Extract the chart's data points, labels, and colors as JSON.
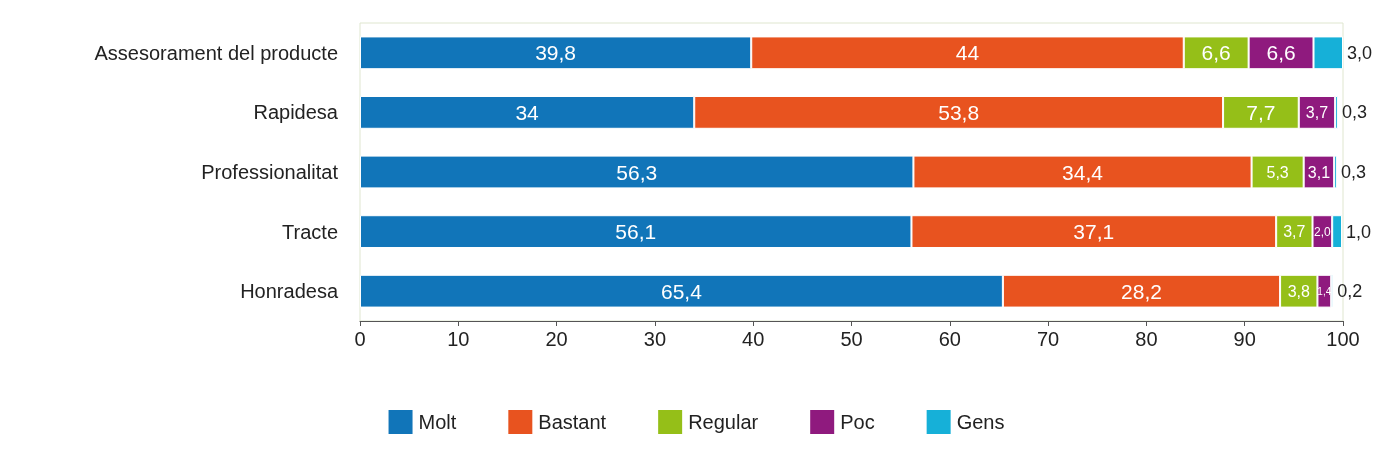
{
  "chart_data": {
    "type": "bar",
    "orientation": "horizontal",
    "stacked": true,
    "categories": [
      "Assesorament del producte",
      "Rapidesa",
      "Professionalitat",
      "Tracte",
      "Honradesa"
    ],
    "series": [
      {
        "name": "Molt",
        "color": "#1175b9",
        "values": [
          39.8,
          34,
          56.3,
          56.1,
          65.4
        ],
        "value_labels": [
          "39,8",
          "34",
          "56,3",
          "56,1",
          "65,4"
        ]
      },
      {
        "name": "Bastant",
        "color": "#e8531f",
        "values": [
          44,
          53.8,
          34.4,
          37.1,
          28.2
        ],
        "value_labels": [
          "44",
          "53,8",
          "34,4",
          "37,1",
          "28,2"
        ]
      },
      {
        "name": "Regular",
        "color": "#95bf18",
        "values": [
          6.6,
          7.7,
          5.3,
          3.7,
          3.8
        ],
        "value_labels": [
          "6,6",
          "7,7",
          "5,3",
          "3,7",
          "3,8"
        ]
      },
      {
        "name": "Poc",
        "color": "#8f1a7e",
        "values": [
          6.6,
          3.7,
          3.1,
          2.0,
          1.4
        ],
        "value_labels": [
          "6,6",
          "3,7",
          "3,1",
          "2,0",
          "1,4"
        ]
      },
      {
        "name": "Gens",
        "color": "#16b0d8",
        "values": [
          3.0,
          0.3,
          0.3,
          1.0,
          0.2
        ],
        "value_labels": [
          "3,0",
          "0,3",
          "0,3",
          "1,0",
          "0,2"
        ]
      }
    ],
    "xlim": [
      0,
      100
    ],
    "xticks": [
      0,
      10,
      20,
      30,
      40,
      50,
      60,
      70,
      80,
      90,
      100
    ],
    "grid": false,
    "legend": "bottom"
  }
}
